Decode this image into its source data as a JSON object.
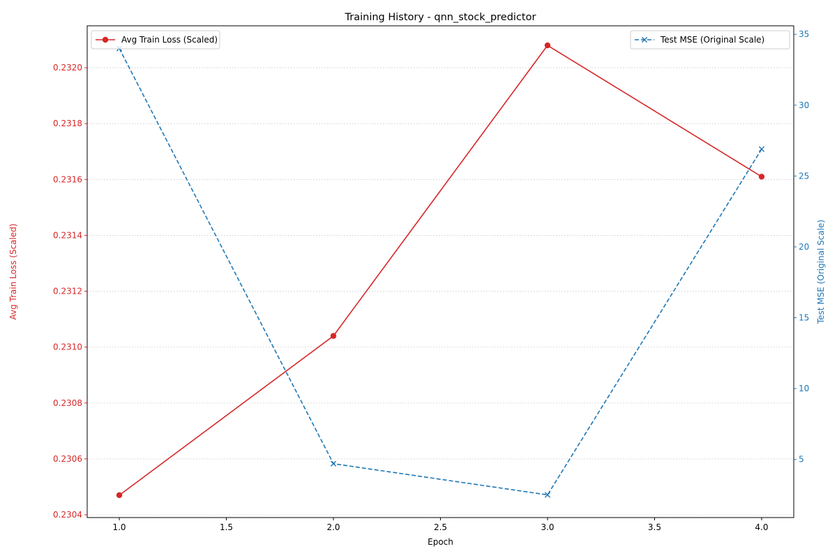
{
  "chart_data": {
    "type": "line",
    "title": "Training History - qnn_stock_predictor",
    "xlabel": "Epoch",
    "x": [
      1,
      2,
      3,
      4
    ],
    "xlim": [
      0.85,
      4.15
    ],
    "x_ticks": [
      1.0,
      1.5,
      2.0,
      2.5,
      3.0,
      3.5,
      4.0
    ],
    "x_tick_labels": [
      "1.0",
      "1.5",
      "2.0",
      "2.5",
      "3.0",
      "3.5",
      "4.0"
    ],
    "grid": "horizontal dotted (left axis)",
    "series": [
      {
        "name": "Avg Train Loss (Scaled)",
        "axis": "left",
        "color": "#d62728",
        "style": "solid",
        "marker": "circle",
        "values": [
          0.23047,
          0.23104,
          0.23208,
          0.23161
        ]
      },
      {
        "name": "Test MSE (Original Scale)",
        "axis": "right",
        "color": "#1f77b4",
        "style": "dashed",
        "marker": "x",
        "values": [
          34.0,
          4.7,
          2.5,
          26.9
        ]
      }
    ],
    "y_left": {
      "label": "Avg Train Loss (Scaled)",
      "color": "#d62728",
      "ylim": [
        0.23039,
        0.23215
      ],
      "ticks": [
        0.2304,
        0.2306,
        0.2308,
        0.231,
        0.2312,
        0.2314,
        0.2316,
        0.2318,
        0.232
      ],
      "tick_labels": [
        "0.2304",
        "0.2306",
        "0.2308",
        "0.2310",
        "0.2312",
        "0.2314",
        "0.2316",
        "0.2318",
        "0.2320"
      ]
    },
    "y_right": {
      "label": "Test MSE (Original Scale)",
      "color": "#1f77b4",
      "ylim": [
        0.9,
        35.6
      ],
      "ticks": [
        5,
        10,
        15,
        20,
        25,
        30,
        35
      ],
      "tick_labels": [
        "5",
        "10",
        "15",
        "20",
        "25",
        "30",
        "35"
      ]
    },
    "legends": [
      {
        "placement": "upper-left",
        "series": 0
      },
      {
        "placement": "upper-right",
        "series": 1
      }
    ]
  }
}
